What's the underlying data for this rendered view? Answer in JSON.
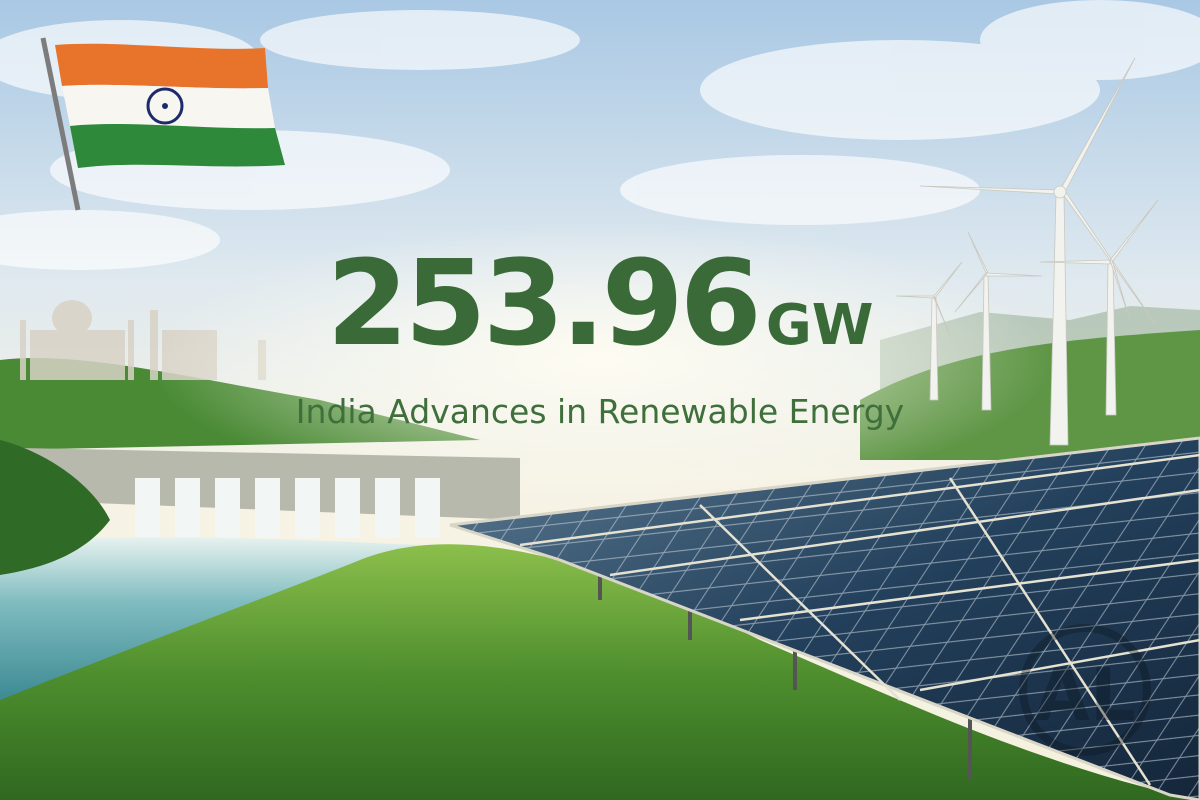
{
  "headline": {
    "value": "253.96",
    "unit": "GW",
    "subtitle": "India Advances in Renewable Energy"
  },
  "watermark": {
    "text": "AL"
  },
  "colors": {
    "text_green": "#3a6a38",
    "flag_saffron": "#e8742c",
    "flag_white": "#f8f6f0",
    "flag_green": "#2e8a3a",
    "chakra_navy": "#1d2a6b",
    "sky_top": "#a9c8e4",
    "solar_panel": "#1f3a56"
  }
}
